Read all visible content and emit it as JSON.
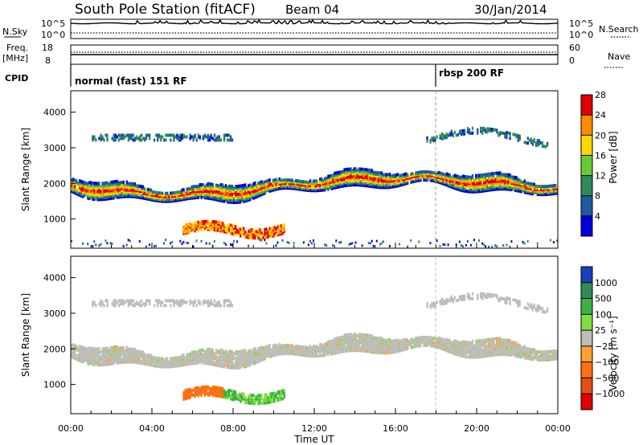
{
  "header": {
    "station": "South Pole Station (fitACF)",
    "beam": "Beam 04",
    "date": "30/Jan/2014"
  },
  "top_panels": {
    "nsky_label": "N.Sky",
    "nsky_ticks": [
      "10^5",
      "10^0"
    ],
    "nsearch_label": "N.Search",
    "freq_label_1": "Freq.",
    "freq_label_2": "[MHz]",
    "freq_ticks": [
      "18",
      "8"
    ],
    "nave_ticks": [
      "60",
      "0"
    ],
    "nave_label": "Nave",
    "cpid_label": "CPID",
    "cpid_modes": [
      {
        "label": "normal (fast) 151 RF",
        "start_ut": 0
      },
      {
        "label": "rbsp 200 RF",
        "start_ut": 18
      }
    ]
  },
  "chart_data": [
    {
      "type": "heatmap",
      "name": "power",
      "ylabel": "Slant Range [km]",
      "xlabel": "Time UT",
      "x_ticks": [
        "00:00",
        "04:00",
        "08:00",
        "12:00",
        "16:00",
        "20:00",
        "00:00"
      ],
      "xlim_hours": [
        0,
        24
      ],
      "y_ticks": [
        1000,
        2000,
        3000,
        4000
      ],
      "ylim_km": [
        180,
        4600
      ],
      "colorbar_label": "Power [dB]",
      "colorbar_ticks": [
        4,
        8,
        12,
        16,
        20,
        24,
        28
      ],
      "colorbar_range": [
        0,
        30
      ],
      "colors": [
        "#0000e0",
        "#1e5aa0",
        "#2e8b57",
        "#66cc33",
        "#ffd800",
        "#ff8c00",
        "#e00000"
      ],
      "bands": [
        {
          "name": "main",
          "center_km": 1950,
          "half_width_km": 300,
          "peak_db": 28
        },
        {
          "name": "lower",
          "center_km": 800,
          "hours": [
            5.5,
            10.5
          ],
          "peak_db": 28
        },
        {
          "name": "upper",
          "center_km": 3400,
          "peak_db": 12
        }
      ]
    },
    {
      "type": "heatmap",
      "name": "velocity",
      "ylabel": "Slant Range [km]",
      "xlabel": "Time UT",
      "x_ticks": [
        "00:00",
        "04:00",
        "08:00",
        "12:00",
        "16:00",
        "20:00",
        "00:00"
      ],
      "xlim_hours": [
        0,
        24
      ],
      "y_ticks": [
        1000,
        2000,
        3000,
        4000
      ],
      "ylim_km": [
        180,
        4600
      ],
      "colorbar_label": "Velocity [m s⁻¹]",
      "colorbar_ticks": [
        "1000",
        "500",
        "100",
        "25",
        "−25",
        "−100",
        "−500",
        "−1000"
      ],
      "colors": [
        "#1a3fc0",
        "#2e8b57",
        "#3cb043",
        "#80dd40",
        "#bebeb8",
        "#ffa030",
        "#ff7010",
        "#e05010",
        "#e00000"
      ]
    }
  ]
}
